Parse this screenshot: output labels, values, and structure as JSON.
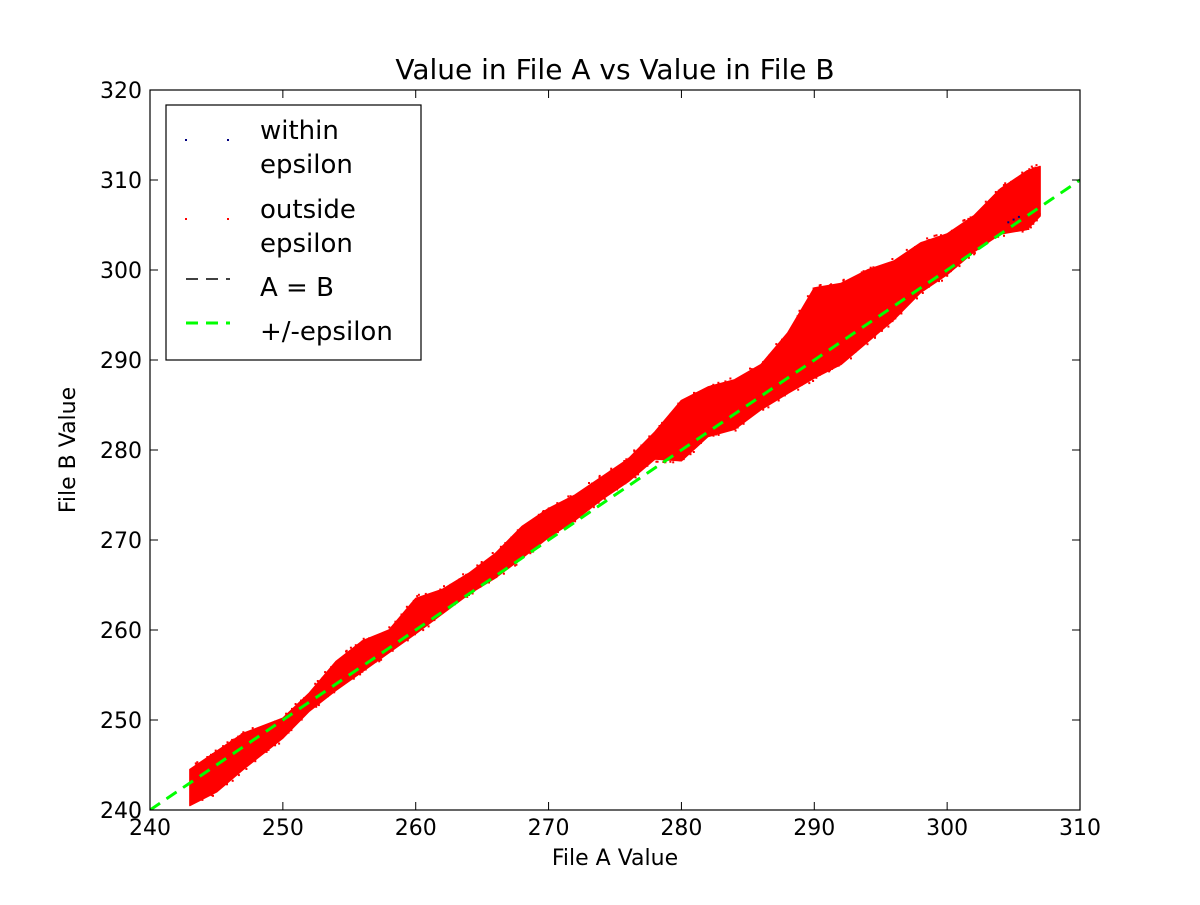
{
  "chart_data": {
    "type": "scatter",
    "title": "Value in File A vs Value in File B",
    "xlabel": "File A Value",
    "ylabel": "File B Value",
    "xlim": [
      240,
      310
    ],
    "ylim": [
      240,
      320
    ],
    "xticks": [
      "240",
      "250",
      "260",
      "270",
      "280",
      "290",
      "300",
      "310"
    ],
    "yticks": [
      "240",
      "250",
      "260",
      "270",
      "280",
      "290",
      "300",
      "310",
      "320"
    ],
    "grid": false,
    "legend_position": "top-left",
    "legend": [
      {
        "label_lines": [
          "within",
          "epsilon"
        ],
        "marker": "point",
        "color": "#000080"
      },
      {
        "label_lines": [
          "outside",
          "epsilon"
        ],
        "marker": "point",
        "color": "#ff0000"
      },
      {
        "label_lines": [
          "A = B"
        ],
        "marker": "dashed-line",
        "color": "#000000"
      },
      {
        "label_lines": [
          "+/-epsilon"
        ],
        "marker": "dashed-line",
        "color": "#00ff00"
      }
    ],
    "series": [
      {
        "name": "outside epsilon",
        "type": "scatter-band",
        "color": "#ff0000",
        "x": [
          243,
          245,
          247,
          250,
          252,
          254,
          256,
          258,
          260,
          262,
          264,
          266,
          268,
          270,
          272,
          274,
          276,
          278,
          280,
          282,
          284,
          286,
          288,
          290,
          292,
          294,
          296,
          298,
          300,
          302,
          304,
          306,
          307
        ],
        "y_low": [
          240.5,
          242,
          244.5,
          248,
          251,
          253.3,
          255.4,
          257.5,
          259.6,
          261.8,
          264,
          265.8,
          268,
          270.3,
          272.2,
          274.5,
          276.5,
          279,
          278.8,
          281.5,
          282.3,
          284.5,
          286.3,
          288,
          289.5,
          292,
          294.5,
          297.5,
          299.5,
          302,
          304,
          304.5,
          306
        ],
        "y_high": [
          244.5,
          246.5,
          248.5,
          250.2,
          253,
          256.5,
          258.8,
          260,
          263.5,
          264.5,
          266.3,
          268.5,
          271.5,
          273.5,
          275,
          277,
          279,
          282,
          285.5,
          287,
          287.8,
          289.5,
          293,
          298,
          298.5,
          300,
          301,
          303,
          304,
          306,
          309,
          311,
          311.5
        ]
      },
      {
        "name": "within epsilon",
        "type": "scatter",
        "color": "#000080",
        "x": [
          304.6,
          305.0,
          305.4
        ],
        "y": [
          305.3,
          305.6,
          305.9
        ]
      },
      {
        "name": "A = B",
        "type": "line",
        "style": "dashed",
        "color": "#000000",
        "x": [
          240,
          310
        ],
        "y": [
          240,
          310
        ]
      },
      {
        "name": "+/-epsilon",
        "type": "line",
        "style": "dashed",
        "color": "#00ff00",
        "x": [
          240,
          310
        ],
        "y": [
          240,
          310
        ]
      }
    ]
  }
}
